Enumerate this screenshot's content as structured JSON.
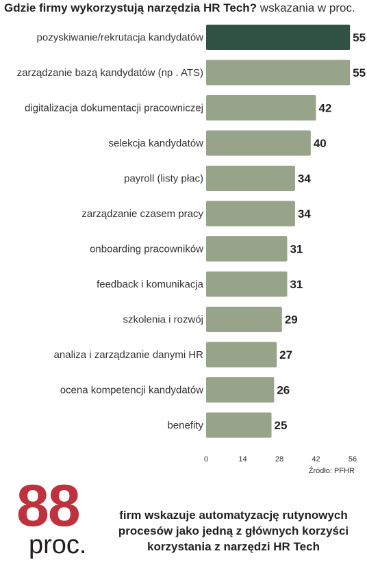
{
  "title": {
    "bold": "Gdzie firmy wykorzystują narzędzia HR Tech?",
    "light": "wskazania w proc."
  },
  "colors": {
    "highlight": "#2f5243",
    "bar": "#98a48a",
    "accent": "#c0313e"
  },
  "chart_data": {
    "type": "bar",
    "orientation": "horizontal",
    "categories": [
      "pozyskiwanie/rekrutacja kandydatów",
      "zarządzanie bazą kandydatów (np . ATS)",
      "digitalizacja dokumentacji pracowniczej",
      "selekcja kandydatów",
      "payroll (listy płac)",
      "zarządzanie czasem pracy",
      "onboarding pracowników",
      "feedback i komunikacja",
      "szkolenia i rozwój",
      "analiza i zarządzanie danymi HR",
      "ocena kompetencji kandydatów",
      "benefity"
    ],
    "values": [
      55,
      55,
      42,
      40,
      34,
      34,
      31,
      31,
      29,
      27,
      26,
      25
    ],
    "highlighted_index": 0,
    "xlim": [
      0,
      56
    ],
    "xticks": [
      0,
      14,
      28,
      42,
      56
    ],
    "grid": false
  },
  "source": "Źródło: PFHR",
  "callout": {
    "number": "88",
    "unit": "proc.",
    "text": "firm wskazuje automatyzację rutynowych procesów jako jedną z głównych korzyści korzystania z narzędzi HR Tech"
  }
}
